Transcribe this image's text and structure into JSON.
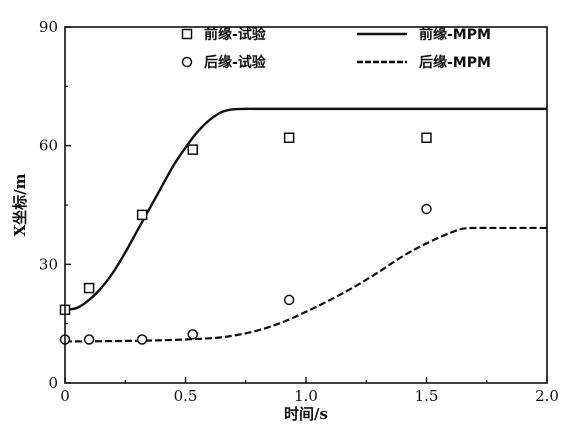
{
  "chart_data": {
    "type": "line",
    "title": "",
    "xlabel": "时间/s",
    "ylabel": "X坐标/m",
    "xlim": [
      0,
      2.0
    ],
    "ylim": [
      0,
      90
    ],
    "x_ticks": [
      "0",
      "0.5",
      "1.0",
      "1.5",
      "2.0"
    ],
    "y_ticks": [
      "0",
      "30",
      "60",
      "90"
    ],
    "grid": false,
    "legend_position": "top",
    "series": [
      {
        "name": "前缘-试验",
        "kind": "scatter",
        "marker": "square",
        "x": [
          0.0,
          0.1,
          0.32,
          0.53,
          0.93,
          1.5
        ],
        "y": [
          18.5,
          24.0,
          42.5,
          59.0,
          62.0,
          62.0
        ]
      },
      {
        "name": "后缘-试验",
        "kind": "scatter",
        "marker": "circle",
        "x": [
          0.0,
          0.1,
          0.32,
          0.53,
          0.93,
          1.5
        ],
        "y": [
          11.0,
          11.0,
          11.0,
          12.3,
          21.0,
          44.0
        ]
      },
      {
        "name": "前缘-MPM",
        "kind": "line",
        "style": "solid",
        "x": [
          0.0,
          0.05,
          0.1,
          0.15,
          0.2,
          0.25,
          0.3,
          0.35,
          0.4,
          0.45,
          0.5,
          0.55,
          0.6,
          0.65,
          0.7,
          0.75,
          0.8,
          1.0,
          1.5,
          2.0
        ],
        "y": [
          18.5,
          19.0,
          21.0,
          24.0,
          28.0,
          33.0,
          38.5,
          44.0,
          49.5,
          55.0,
          59.5,
          63.5,
          66.5,
          68.5,
          69.2,
          69.3,
          69.3,
          69.3,
          69.3,
          69.3
        ]
      },
      {
        "name": "后缘-MPM",
        "kind": "line",
        "style": "dashed",
        "x": [
          0.0,
          0.2,
          0.4,
          0.6,
          0.7,
          0.8,
          0.9,
          1.0,
          1.1,
          1.2,
          1.3,
          1.4,
          1.5,
          1.6,
          1.65,
          1.7,
          1.8,
          2.0
        ],
        "y": [
          10.5,
          10.6,
          10.8,
          11.3,
          12.0,
          13.3,
          15.3,
          18.0,
          21.0,
          24.3,
          28.0,
          32.0,
          35.3,
          38.0,
          39.0,
          39.2,
          39.2,
          39.2
        ]
      }
    ]
  }
}
